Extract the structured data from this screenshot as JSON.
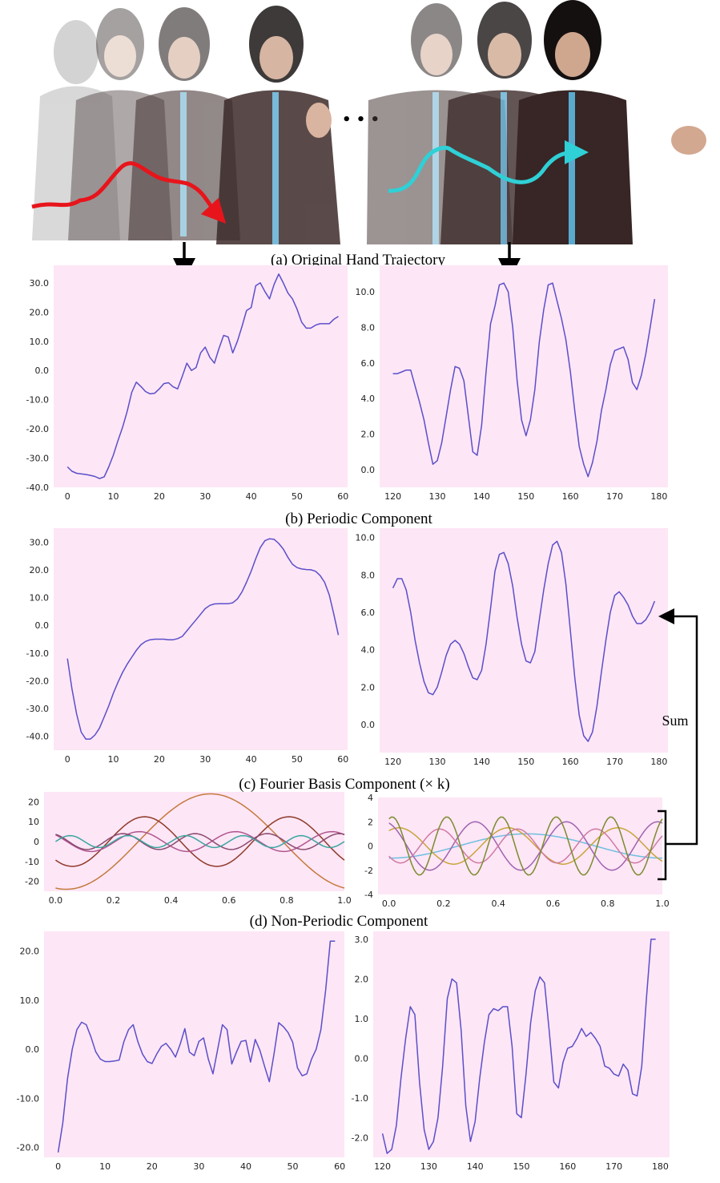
{
  "captions": {
    "a": "(a) Original Hand Trajectory",
    "b": "(b) Periodic Component",
    "c": "(c) Fourier Basis Component (× k)",
    "d": "(d) Non-Periodic Component"
  },
  "sum_label": "Sum",
  "ellipsis": "• • •",
  "colors": {
    "line": "#5b4fc9",
    "panel_bg": "#fde6f6",
    "arrow_left": "#e8141b",
    "arrow_right": "#2fd0d6"
  },
  "chart_data": [
    {
      "id": "b-left",
      "type": "line",
      "title": "",
      "xlabel": "",
      "ylabel": "",
      "xlim": [
        -3,
        61
      ],
      "ylim": [
        -40,
        36
      ],
      "xticks": [
        0,
        10,
        20,
        30,
        40,
        50,
        60
      ],
      "yticks": [
        -40,
        -30,
        -20,
        -10,
        0,
        10,
        20,
        30
      ],
      "ydec": true,
      "series": [
        {
          "name": "periodic",
          "x": [
            0,
            1,
            2,
            3,
            4,
            5,
            6,
            7,
            8,
            9,
            10,
            11,
            12,
            13,
            14,
            15,
            16,
            17,
            18,
            19,
            20,
            21,
            22,
            23,
            24,
            25,
            26,
            27,
            28,
            29,
            30,
            31,
            32,
            33,
            34,
            35,
            36,
            37,
            38,
            39,
            40,
            41,
            42,
            43,
            44,
            45,
            46,
            47,
            48,
            49,
            50,
            51,
            52,
            53,
            54,
            55,
            56,
            57,
            58,
            59
          ],
          "y": [
            -33,
            -34.5,
            -35.2,
            -35.4,
            -35.6,
            -35.9,
            -36.3,
            -37,
            -36.4,
            -33,
            -29,
            -24,
            -19.5,
            -14,
            -7.5,
            -4,
            -5.5,
            -7.2,
            -8,
            -7.8,
            -6.3,
            -4.5,
            -4.2,
            -5.6,
            -6.3,
            -2,
            2.5,
            0,
            1,
            6,
            8,
            4.5,
            2.5,
            7.5,
            12,
            11.5,
            6,
            10,
            15,
            20.5,
            21.5,
            29,
            30,
            27,
            24.5,
            29.5,
            33,
            30,
            26.5,
            24.5,
            21,
            16.5,
            14.5,
            14.5,
            15.5,
            16,
            16,
            16,
            17.5,
            18.5
          ]
        }
      ]
    },
    {
      "id": "b-right",
      "type": "line",
      "title": "",
      "xlabel": "",
      "ylabel": "",
      "xlim": [
        117,
        182
      ],
      "ylim": [
        -1,
        11.5
      ],
      "xticks": [
        120,
        130,
        140,
        150,
        160,
        170,
        180
      ],
      "yticks": [
        0,
        2,
        4,
        6,
        8,
        10
      ],
      "ydec": true,
      "series": [
        {
          "name": "periodic",
          "x": [
            120,
            121,
            122,
            123,
            124,
            125,
            126,
            127,
            128,
            129,
            130,
            131,
            132,
            133,
            134,
            135,
            136,
            137,
            138,
            139,
            140,
            141,
            142,
            143,
            144,
            145,
            146,
            147,
            148,
            149,
            150,
            151,
            152,
            153,
            154,
            155,
            156,
            157,
            158,
            159,
            160,
            161,
            162,
            163,
            164,
            165,
            166,
            167,
            168,
            169,
            170,
            171,
            172,
            173,
            174,
            175,
            176,
            177,
            178,
            179
          ],
          "y": [
            5.4,
            5.4,
            5.5,
            5.6,
            5.6,
            4.7,
            3.8,
            2.8,
            1.5,
            0.3,
            0.5,
            1.5,
            3,
            4.5,
            5.8,
            5.7,
            5,
            3,
            1,
            0.8,
            2.5,
            5.5,
            8.2,
            9.2,
            10.4,
            10.5,
            10,
            8,
            5,
            2.8,
            1.9,
            2.8,
            4.5,
            7.2,
            9,
            10.4,
            10.5,
            9.5,
            8.5,
            7.3,
            5.5,
            3.3,
            1.3,
            0.3,
            -0.4,
            0.4,
            1.6,
            3.3,
            4.5,
            5.9,
            6.7,
            6.8,
            6.9,
            6.2,
            4.9,
            4.5,
            5.3,
            6.5,
            8,
            9.6
          ]
        }
      ]
    },
    {
      "id": "c-left",
      "type": "line",
      "title": "",
      "xlabel": "",
      "ylabel": "",
      "xlim": [
        -3,
        61
      ],
      "ylim": [
        -45,
        35
      ],
      "xticks": [
        0,
        10,
        20,
        30,
        40,
        50,
        60
      ],
      "yticks": [
        -40,
        -30,
        -20,
        -10,
        0,
        10,
        20,
        30
      ],
      "ydec": true,
      "series": [
        {
          "name": "fourier_sum",
          "x": [
            0,
            1,
            2,
            3,
            4,
            5,
            6,
            7,
            8,
            9,
            10,
            11,
            12,
            13,
            14,
            15,
            16,
            17,
            18,
            19,
            20,
            21,
            22,
            23,
            24,
            25,
            26,
            27,
            28,
            29,
            30,
            31,
            32,
            33,
            34,
            35,
            36,
            37,
            38,
            39,
            40,
            41,
            42,
            43,
            44,
            45,
            46,
            47,
            48,
            49,
            50,
            51,
            52,
            53,
            54,
            55,
            56,
            57,
            58,
            59
          ],
          "y": [
            -12,
            -23,
            -32,
            -38.5,
            -41,
            -41,
            -39.5,
            -37,
            -33,
            -29,
            -24.5,
            -20.5,
            -17,
            -14,
            -11.5,
            -9,
            -7,
            -5.8,
            -5.2,
            -5,
            -5,
            -5,
            -5.2,
            -5.2,
            -4.8,
            -4,
            -2,
            0,
            2,
            4,
            6,
            7.2,
            7.7,
            7.8,
            7.8,
            7.8,
            8.1,
            9.5,
            12,
            15.5,
            19.5,
            24,
            28,
            30.5,
            31.2,
            31,
            29.5,
            27.5,
            24.5,
            22,
            20.8,
            20.3,
            20.1,
            20,
            19.5,
            18,
            15.5,
            11,
            4,
            -3.5
          ]
        }
      ]
    },
    {
      "id": "c-right",
      "type": "line",
      "title": "",
      "xlabel": "",
      "ylabel": "",
      "xlim": [
        117,
        182
      ],
      "ylim": [
        -1.5,
        10.5
      ],
      "xticks": [
        120,
        130,
        140,
        150,
        160,
        170,
        180
      ],
      "yticks": [
        0,
        2,
        4,
        6,
        8,
        10
      ],
      "ydec": true,
      "series": [
        {
          "name": "fourier_sum",
          "x": [
            120,
            121,
            122,
            123,
            124,
            125,
            126,
            127,
            128,
            129,
            130,
            131,
            132,
            133,
            134,
            135,
            136,
            137,
            138,
            139,
            140,
            141,
            142,
            143,
            144,
            145,
            146,
            147,
            148,
            149,
            150,
            151,
            152,
            153,
            154,
            155,
            156,
            157,
            158,
            159,
            160,
            161,
            162,
            163,
            164,
            165,
            166,
            167,
            168,
            169,
            170,
            171,
            172,
            173,
            174,
            175,
            176,
            177,
            178,
            179
          ],
          "y": [
            7.3,
            7.8,
            7.8,
            7.2,
            6,
            4.5,
            3.3,
            2.3,
            1.7,
            1.6,
            2,
            2.8,
            3.7,
            4.3,
            4.5,
            4.3,
            3.8,
            3.1,
            2.5,
            2.4,
            2.9,
            4.3,
            6.2,
            8.2,
            9.1,
            9.2,
            8.6,
            7.4,
            5.7,
            4.3,
            3.4,
            3.3,
            3.9,
            5.6,
            7.2,
            8.6,
            9.6,
            9.8,
            9.2,
            7.5,
            5,
            2.5,
            0.5,
            -0.6,
            -0.9,
            -0.4,
            1,
            2.8,
            4.5,
            6,
            6.9,
            7.1,
            6.8,
            6.4,
            5.8,
            5.4,
            5.4,
            5.6,
            6,
            6.6
          ]
        }
      ]
    },
    {
      "id": "basis-left",
      "type": "line",
      "title": "",
      "xlabel": "",
      "ylabel": "",
      "xlim": [
        -0.04,
        1.0
      ],
      "ylim": [
        -25,
        25
      ],
      "xticks": [
        0.0,
        0.2,
        0.4,
        0.6,
        0.8,
        1.0
      ],
      "yticks": [
        -20,
        -10,
        0,
        10,
        20
      ],
      "ydec": false,
      "series": [
        {
          "name": "basis-1",
          "color": "#c47a3c",
          "fn": "sin",
          "amp": 24,
          "freq": 1,
          "phase": -1.8
        },
        {
          "name": "basis-2",
          "color": "#8f3a28",
          "fn": "sin",
          "amp": 12.5,
          "freq": 2,
          "phase": -2.3
        },
        {
          "name": "basis-3",
          "color": "#b0558f",
          "fn": "sin",
          "amp": 5,
          "freq": 3,
          "phase": 2.4
        },
        {
          "name": "basis-4",
          "color": "#8a4a6e",
          "fn": "sin",
          "amp": 4,
          "freq": 4,
          "phase": 2.0
        },
        {
          "name": "basis-5",
          "color": "#3aa6a0",
          "fn": "sin",
          "amp": 3,
          "freq": 5,
          "phase": 0
        }
      ]
    },
    {
      "id": "basis-right",
      "type": "line",
      "title": "",
      "xlabel": "",
      "ylabel": "",
      "xlim": [
        -0.04,
        1.0
      ],
      "ylim": [
        -4,
        4
      ],
      "xticks": [
        0.0,
        0.2,
        0.4,
        0.6,
        0.8,
        1.0
      ],
      "yticks": [
        -4,
        -2,
        0,
        2,
        4
      ],
      "ydec": false,
      "series": [
        {
          "name": "basis-1",
          "color": "#6ebfe0",
          "fn": "sin",
          "amp": 1,
          "freq": 1,
          "phase": -1.6
        },
        {
          "name": "basis-2",
          "color": "#c8a43a",
          "fn": "sin",
          "amp": 1.5,
          "freq": 2.5,
          "phase": 1.0
        },
        {
          "name": "basis-3",
          "color": "#a063b0",
          "fn": "sin",
          "amp": 2,
          "freq": 3,
          "phase": 1.9
        },
        {
          "name": "basis-4",
          "color": "#d07aa3",
          "fn": "sin",
          "amp": 1.4,
          "freq": 3.5,
          "phase": -2.5
        },
        {
          "name": "basis-5",
          "color": "#7b8c2e",
          "fn": "sin",
          "amp": 2.4,
          "freq": 5,
          "phase": 1.2
        }
      ]
    },
    {
      "id": "d-left",
      "type": "line",
      "title": "",
      "xlabel": "",
      "ylabel": "",
      "xlim": [
        -3,
        61
      ],
      "ylim": [
        -22,
        24
      ],
      "xticks": [
        0,
        10,
        20,
        30,
        40,
        50,
        60
      ],
      "yticks": [
        -20,
        -10,
        0,
        10,
        20
      ],
      "ydec": true,
      "series": [
        {
          "name": "non_periodic",
          "x": [
            0,
            1,
            2,
            3,
            4,
            5,
            6,
            7,
            8,
            9,
            10,
            11,
            12,
            13,
            14,
            15,
            16,
            17,
            18,
            19,
            20,
            21,
            22,
            23,
            24,
            25,
            26,
            27,
            28,
            29,
            30,
            31,
            32,
            33,
            34,
            35,
            36,
            37,
            38,
            39,
            40,
            41,
            42,
            43,
            44,
            45,
            46,
            47,
            48,
            49,
            50,
            51,
            52,
            53,
            54,
            55,
            56,
            57,
            58,
            59
          ],
          "y": [
            -21,
            -15,
            -6,
            0,
            4,
            5.5,
            5,
            2.5,
            -0.5,
            -2,
            -2.5,
            -2.5,
            -2.4,
            -2.2,
            1.5,
            4,
            5,
            1.5,
            -1,
            -2.5,
            -2.9,
            -1,
            0.6,
            1.2,
            0,
            -1.6,
            1,
            4.2,
            -0.6,
            -1.3,
            1.6,
            2.3,
            -2,
            -5,
            0,
            5,
            4,
            -3,
            -0.6,
            1.6,
            1.8,
            -2.6,
            2,
            -0.2,
            -3.5,
            -6.6,
            -1,
            5.4,
            4.6,
            3.4,
            1.4,
            -3.8,
            -5.4,
            -5,
            -2,
            0,
            4,
            12,
            22,
            22
          ]
        }
      ]
    },
    {
      "id": "d-right",
      "type": "line",
      "title": "",
      "xlabel": "",
      "ylabel": "",
      "xlim": [
        118,
        182
      ],
      "ylim": [
        -2.5,
        3.2
      ],
      "xticks": [
        120,
        130,
        140,
        150,
        160,
        170,
        180
      ],
      "yticks": [
        -2,
        -1,
        0,
        1,
        2,
        3
      ],
      "ydec": true,
      "series": [
        {
          "name": "non_periodic",
          "x": [
            120,
            121,
            122,
            123,
            124,
            125,
            126,
            127,
            128,
            129,
            130,
            131,
            132,
            133,
            134,
            135,
            136,
            137,
            138,
            139,
            140,
            141,
            142,
            143,
            144,
            145,
            146,
            147,
            148,
            149,
            150,
            151,
            152,
            153,
            154,
            155,
            156,
            157,
            158,
            159,
            160,
            161,
            162,
            163,
            164,
            165,
            166,
            167,
            168,
            169,
            170,
            171,
            172,
            173,
            174,
            175,
            176,
            177,
            178,
            179
          ],
          "y": [
            -1.9,
            -2.4,
            -2.3,
            -1.7,
            -0.5,
            0.5,
            1.3,
            1.1,
            -0.6,
            -1.8,
            -2.3,
            -2.1,
            -1.5,
            -0.2,
            1.5,
            2,
            1.9,
            0.7,
            -1.2,
            -2.1,
            -1.6,
            -0.5,
            0.4,
            1.1,
            1.25,
            1.2,
            1.3,
            1.3,
            0.3,
            -1.4,
            -1.5,
            -0.4,
            0.9,
            1.7,
            2.05,
            1.9,
            0.7,
            -0.6,
            -0.75,
            -0.1,
            0.25,
            0.3,
            0.5,
            0.75,
            0.55,
            0.65,
            0.5,
            0.3,
            -0.2,
            -0.25,
            -0.4,
            -0.45,
            -0.15,
            -0.3,
            -0.9,
            -0.95,
            -0.2,
            1.5,
            3,
            3
          ]
        }
      ]
    }
  ]
}
